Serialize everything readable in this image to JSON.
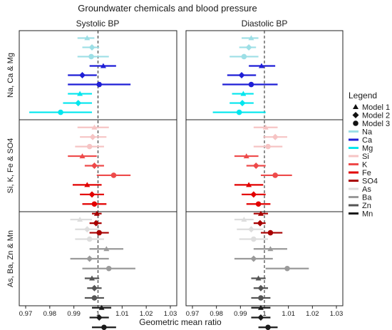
{
  "chart_data": {
    "type": "scatter",
    "title": "Groundwater chemicals and blood pressure",
    "xlabel": "Geometric mean ratio",
    "xlim": [
      0.97,
      1.03
    ],
    "x_ticks": [
      "0.97",
      "0.98",
      "0.99",
      "1",
      "1.01",
      "1.02",
      "1.03"
    ],
    "reference_line": 1.0,
    "panels": [
      "Systolic BP",
      "Diastolic BP"
    ],
    "groups": [
      "Na, Ca & Mg",
      "Si, K, Fe & SO4",
      "As, Ba, Zn & Mn"
    ],
    "legend": {
      "title": "Legend",
      "models": [
        {
          "label": "Model 1",
          "shape": "triangle"
        },
        {
          "label": "Model 2",
          "shape": "diamond"
        },
        {
          "label": "Model 3",
          "shape": "circle"
        }
      ],
      "chemicals": [
        {
          "label": "Na",
          "color": "#9ddfe6"
        },
        {
          "label": "Ca",
          "color": "#1f1fd6"
        },
        {
          "label": "Mg",
          "color": "#00e6ee"
        },
        {
          "label": "Si",
          "color": "#f6c4c4"
        },
        {
          "label": "K",
          "color": "#ee4a4a"
        },
        {
          "label": "Fe",
          "color": "#e20000"
        },
        {
          "label": "SO4",
          "color": "#a80000"
        },
        {
          "label": "As",
          "color": "#dddddd"
        },
        {
          "label": "Ba",
          "color": "#9a9a9a"
        },
        {
          "label": "Zn",
          "color": "#555555"
        },
        {
          "label": "Mn",
          "color": "#1a1a1a"
        }
      ]
    },
    "series": [
      {
        "chemical": "Na",
        "group": 0,
        "model": "Model 1",
        "systolic": {
          "est": 0.9955,
          "lo": 0.9915,
          "hi": 0.9985
        },
        "diastolic": {
          "est": 0.9945,
          "lo": 0.9905,
          "hi": 0.9975
        }
      },
      {
        "chemical": "Na",
        "group": 0,
        "model": "Model 2",
        "systolic": {
          "est": 0.9975,
          "lo": 0.9935,
          "hi": 1.0005
        },
        "diastolic": {
          "est": 0.9935,
          "lo": 0.9895,
          "hi": 0.9965
        }
      },
      {
        "chemical": "Na",
        "group": 0,
        "model": "Model 3",
        "systolic": {
          "est": 0.9972,
          "lo": 0.9915,
          "hi": 1.0045
        },
        "diastolic": {
          "est": 0.9915,
          "lo": 0.9855,
          "hi": 0.9975
        }
      },
      {
        "chemical": "Ca",
        "group": 0,
        "model": "Model 1",
        "systolic": {
          "est": 1.0022,
          "lo": 0.9965,
          "hi": 1.0075
        },
        "diastolic": {
          "est": 0.9988,
          "lo": 0.9935,
          "hi": 1.0045
        }
      },
      {
        "chemical": "Ca",
        "group": 0,
        "model": "Model 2",
        "systolic": {
          "est": 0.9935,
          "lo": 0.9875,
          "hi": 0.9995
        },
        "diastolic": {
          "est": 0.9905,
          "lo": 0.9845,
          "hi": 0.9965
        }
      },
      {
        "chemical": "Ca",
        "group": 0,
        "model": "Model 3",
        "systolic": {
          "est": 1.0005,
          "lo": 0.9875,
          "hi": 1.0135
        },
        "diastolic": {
          "est": 0.9945,
          "lo": 0.9825,
          "hi": 1.0055
        }
      },
      {
        "chemical": "Mg",
        "group": 0,
        "model": "Model 1",
        "systolic": {
          "est": 0.9925,
          "lo": 0.9875,
          "hi": 0.9975
        },
        "diastolic": {
          "est": 0.9912,
          "lo": 0.9865,
          "hi": 0.9955
        }
      },
      {
        "chemical": "Mg",
        "group": 0,
        "model": "Model 2",
        "systolic": {
          "est": 0.9918,
          "lo": 0.9855,
          "hi": 0.9975
        },
        "diastolic": {
          "est": 0.9908,
          "lo": 0.9855,
          "hi": 0.9955
        }
      },
      {
        "chemical": "Mg",
        "group": 0,
        "model": "Model 3",
        "systolic": {
          "est": 0.9845,
          "lo": 0.9715,
          "hi": 0.9975
        },
        "diastolic": {
          "est": 0.9895,
          "lo": 0.9785,
          "hi": 1.0005
        }
      },
      {
        "chemical": "Si",
        "group": 1,
        "model": "Model 1",
        "systolic": {
          "est": 0.9985,
          "lo": 0.9915,
          "hi": 1.0045
        },
        "diastolic": {
          "est": 1.0005,
          "lo": 0.9955,
          "hi": 1.0055
        }
      },
      {
        "chemical": "Si",
        "group": 1,
        "model": "Model 2",
        "systolic": {
          "est": 0.9978,
          "lo": 0.9925,
          "hi": 1.0035
        },
        "diastolic": {
          "est": 1.0045,
          "lo": 0.9995,
          "hi": 1.0095
        }
      },
      {
        "chemical": "Si",
        "group": 1,
        "model": "Model 3",
        "systolic": {
          "est": 0.9965,
          "lo": 0.9905,
          "hi": 1.0025
        },
        "diastolic": {
          "est": 1.0015,
          "lo": 0.9955,
          "hi": 1.0075
        }
      },
      {
        "chemical": "K",
        "group": 1,
        "model": "Model 1",
        "systolic": {
          "est": 0.9935,
          "lo": 0.9875,
          "hi": 0.9995
        },
        "diastolic": {
          "est": 0.9925,
          "lo": 0.9875,
          "hi": 0.9975
        }
      },
      {
        "chemical": "K",
        "group": 1,
        "model": "Model 2",
        "systolic": {
          "est": 0.9985,
          "lo": 0.9945,
          "hi": 1.0025
        },
        "diastolic": {
          "est": 0.9965,
          "lo": 0.9925,
          "hi": 1.0005
        }
      },
      {
        "chemical": "K",
        "group": 1,
        "model": "Model 3",
        "systolic": {
          "est": 1.0065,
          "lo": 0.9995,
          "hi": 1.0135
        },
        "diastolic": {
          "est": 1.0045,
          "lo": 0.9985,
          "hi": 1.0115
        }
      },
      {
        "chemical": "Fe",
        "group": 1,
        "model": "Model 1",
        "systolic": {
          "est": 0.9955,
          "lo": 0.9895,
          "hi": 1.0015
        },
        "diastolic": {
          "est": 0.9935,
          "lo": 0.9875,
          "hi": 0.9995
        }
      },
      {
        "chemical": "Fe",
        "group": 1,
        "model": "Model 2",
        "systolic": {
          "est": 0.9975,
          "lo": 0.9925,
          "hi": 1.0025
        },
        "diastolic": {
          "est": 0.9955,
          "lo": 0.9905,
          "hi": 1.0005
        }
      },
      {
        "chemical": "Fe",
        "group": 1,
        "model": "Model 3",
        "systolic": {
          "est": 0.9985,
          "lo": 0.9935,
          "hi": 1.0035
        },
        "diastolic": {
          "est": 0.9975,
          "lo": 0.9925,
          "hi": 1.0025
        }
      },
      {
        "chemical": "SO4",
        "group": 1,
        "model": "Model 1",
        "systolic": {
          "est": 0.9995,
          "lo": 0.9975,
          "hi": 1.0015
        },
        "diastolic": {
          "est": 0.9985,
          "lo": 0.9955,
          "hi": 1.0015
        }
      },
      {
        "chemical": "SO4",
        "group": 1,
        "model": "Model 2",
        "systolic": {
          "est": 0.9992,
          "lo": 0.9965,
          "hi": 1.0015
        },
        "diastolic": {
          "est": 0.9982,
          "lo": 0.9955,
          "hi": 1.0005
        }
      },
      {
        "chemical": "SO4",
        "group": 1,
        "model": "Model 3",
        "systolic": {
          "est": 1.0005,
          "lo": 0.9965,
          "hi": 1.0045
        },
        "diastolic": {
          "est": 1.0025,
          "lo": 0.9985,
          "hi": 1.0075
        }
      },
      {
        "chemical": "As",
        "group": 2,
        "model": "Model 1",
        "systolic": {
          "est": 0.9925,
          "lo": 0.9885,
          "hi": 0.9975
        },
        "diastolic": {
          "est": 0.9915,
          "lo": 0.9875,
          "hi": 0.9955
        }
      },
      {
        "chemical": "As",
        "group": 2,
        "model": "Model 2",
        "systolic": {
          "est": 0.9955,
          "lo": 0.9905,
          "hi": 1.0005
        },
        "diastolic": {
          "est": 0.9945,
          "lo": 0.9885,
          "hi": 0.9995
        }
      },
      {
        "chemical": "As",
        "group": 2,
        "model": "Model 3",
        "systolic": {
          "est": 0.9965,
          "lo": 0.9905,
          "hi": 1.0025
        },
        "diastolic": {
          "est": 0.9955,
          "lo": 0.9895,
          "hi": 1.0015
        }
      },
      {
        "chemical": "Ba",
        "group": 2,
        "model": "Model 1",
        "systolic": {
          "est": 1.0035,
          "lo": 0.9965,
          "hi": 1.0105
        },
        "diastolic": {
          "est": 1.0025,
          "lo": 0.9955,
          "hi": 1.0095
        }
      },
      {
        "chemical": "Ba",
        "group": 2,
        "model": "Model 2",
        "systolic": {
          "est": 0.9965,
          "lo": 0.9885,
          "hi": 1.0045
        },
        "diastolic": {
          "est": 0.9955,
          "lo": 0.9875,
          "hi": 1.0035
        }
      },
      {
        "chemical": "Ba",
        "group": 2,
        "model": "Model 3",
        "systolic": {
          "est": 1.0045,
          "lo": 0.9935,
          "hi": 1.0155
        },
        "diastolic": {
          "est": 1.0095,
          "lo": 1.0005,
          "hi": 1.0185
        }
      },
      {
        "chemical": "Zn",
        "group": 2,
        "model": "Model 1",
        "systolic": {
          "est": 0.9975,
          "lo": 0.9945,
          "hi": 1.0005
        },
        "diastolic": {
          "est": 0.9975,
          "lo": 0.9945,
          "hi": 1.0005
        }
      },
      {
        "chemical": "Zn",
        "group": 2,
        "model": "Model 2",
        "systolic": {
          "est": 0.9985,
          "lo": 0.9955,
          "hi": 1.0015
        },
        "diastolic": {
          "est": 0.9985,
          "lo": 0.9955,
          "hi": 1.0015
        }
      },
      {
        "chemical": "Zn",
        "group": 2,
        "model": "Model 3",
        "systolic": {
          "est": 0.9985,
          "lo": 0.9945,
          "hi": 1.0025
        },
        "diastolic": {
          "est": 0.9985,
          "lo": 0.9945,
          "hi": 1.0025
        }
      },
      {
        "chemical": "Mn",
        "group": 2,
        "model": "Model 1",
        "systolic": {
          "est": 1.0015,
          "lo": 0.9975,
          "hi": 1.0055
        },
        "diastolic": {
          "est": 0.9985,
          "lo": 0.9945,
          "hi": 1.0025
        }
      },
      {
        "chemical": "Mn",
        "group": 2,
        "model": "Model 2",
        "systolic": {
          "est": 1.0005,
          "lo": 0.9965,
          "hi": 1.0045
        },
        "diastolic": {
          "est": 0.9985,
          "lo": 0.9945,
          "hi": 1.0025
        }
      },
      {
        "chemical": "Mn",
        "group": 2,
        "model": "Model 3",
        "systolic": {
          "est": 1.0025,
          "lo": 0.9975,
          "hi": 1.0075
        },
        "diastolic": {
          "est": 1.0015,
          "lo": 0.9975,
          "hi": 1.0055
        }
      }
    ]
  }
}
